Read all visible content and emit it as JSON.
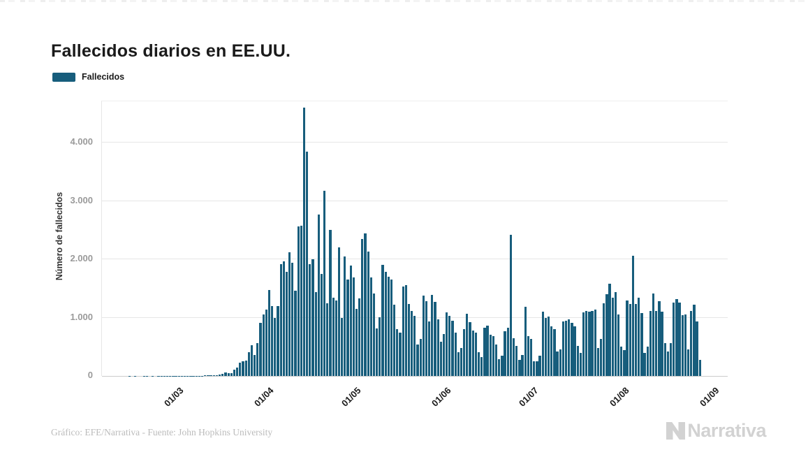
{
  "header": {
    "title": "Fallecidos diarios en EE.UU."
  },
  "legend": {
    "items": [
      {
        "label": "Fallecidos",
        "color": "#175d7c"
      }
    ]
  },
  "footer": {
    "credit": "Gráfico: EFE/Narrativa - Fuente: John Hopkins University"
  },
  "branding": {
    "logo_text": "Narrativa"
  },
  "colors": {
    "bar": "#175d7c",
    "grid": "#e6e6e6",
    "axis": "#cccccc",
    "title": "#1a1a1a",
    "y_tick": "#9a9a9a",
    "x_tick": "#1a1a1a",
    "footer": "#bcbcbc",
    "logo": "#d2d2d2"
  },
  "chart_data": {
    "type": "bar",
    "title": "Fallecidos diarios en EE.UU.",
    "xlabel": "",
    "ylabel": "Número de fallecidos",
    "legend_position": "top-left",
    "grid": "horizontal",
    "ylim": [
      0,
      4710
    ],
    "x_slots": 215,
    "x_start_date": "2020-02-06",
    "x_end_date": "2020-08-29",
    "frequency": "daily",
    "yticks": [
      {
        "value": 0,
        "label": "0"
      },
      {
        "value": 1000,
        "label": "1.000"
      },
      {
        "value": 2000,
        "label": "2.000"
      },
      {
        "value": 3000,
        "label": "3.000"
      },
      {
        "value": 4000,
        "label": "4.000"
      }
    ],
    "xticks": [
      {
        "day_index": 24,
        "label": "01/03"
      },
      {
        "day_index": 55,
        "label": "01/04"
      },
      {
        "day_index": 85,
        "label": "01/05"
      },
      {
        "day_index": 116,
        "label": "01/06"
      },
      {
        "day_index": 146,
        "label": "01/07"
      },
      {
        "day_index": 177,
        "label": "01/08"
      },
      {
        "day_index": 208,
        "label": "01/09"
      }
    ],
    "series": [
      {
        "name": "Fallecidos",
        "color": "#175d7c",
        "values": [
          0,
          0,
          0,
          0,
          0,
          0,
          0,
          0,
          0,
          1,
          0,
          1,
          0,
          0,
          1,
          1,
          0,
          1,
          0,
          1,
          1,
          1,
          1,
          3,
          1,
          5,
          3,
          2,
          2,
          3,
          4,
          4,
          4,
          6,
          4,
          9,
          8,
          11,
          12,
          18,
          26,
          42,
          58,
          50,
          47,
          112,
          141,
          226,
          247,
          268,
          412,
          526,
          364,
          559,
          913,
          1049,
          1140,
          1480,
          1200,
          1000,
          1200,
          1920,
          1960,
          1780,
          2120,
          1940,
          1460,
          2560,
          2580,
          4600,
          3850,
          1920,
          2000,
          1440,
          2770,
          1750,
          3180,
          1250,
          2500,
          1340,
          1290,
          2210,
          1000,
          2050,
          1650,
          1897,
          1690,
          1155,
          1325,
          2350,
          2440,
          2130,
          1690,
          1420,
          820,
          1010,
          1900,
          1780,
          1700,
          1660,
          1220,
          800,
          740,
          1540,
          1560,
          1240,
          1120,
          1030,
          540,
          640,
          1380,
          1280,
          940,
          1390,
          1270,
          970,
          590,
          725,
          1090,
          1030,
          950,
          745,
          405,
          485,
          805,
          1070,
          925,
          785,
          745,
          405,
          325,
          825,
          865,
          705,
          685,
          545,
          285,
          345,
          765,
          825,
          2420,
          650,
          510,
          280,
          355,
          1190,
          680,
          640,
          252,
          254,
          352,
          1100,
          995,
          1020,
          850,
          800,
          420,
          450,
          935,
          945,
          965,
          910,
          850,
          515,
          400,
          1085,
          1115,
          1100,
          1115,
          1140,
          485,
          635,
          1245,
          1400,
          1580,
          1340,
          1440,
          1060,
          500,
          440,
          1300,
          1240,
          2060,
          1240,
          1340,
          1080,
          400,
          500,
          1120,
          1420,
          1120,
          1280,
          1100,
          560,
          420,
          560,
          1260,
          1320,
          1260,
          1040,
          1060,
          460,
          1120,
          1220,
          940,
          280
        ]
      }
    ]
  }
}
